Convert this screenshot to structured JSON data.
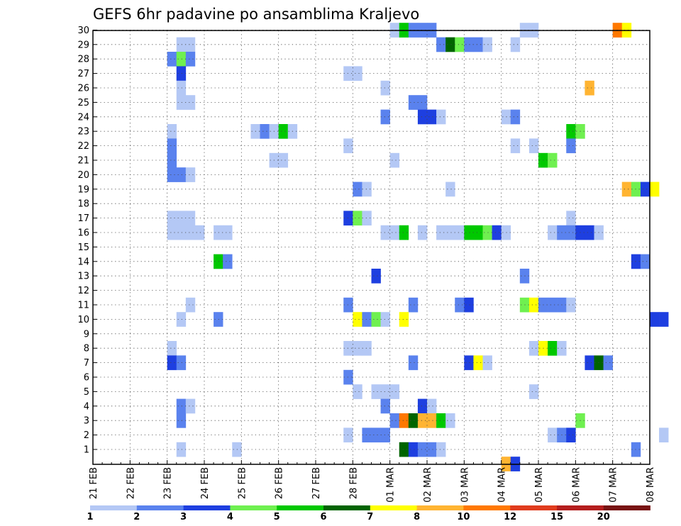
{
  "chart_data": {
    "type": "heatmap",
    "title": "GEFS 6hr padavine po ansamblima Kraljevo",
    "y_ticks": [
      "1",
      "2",
      "3",
      "4",
      "5",
      "6",
      "7",
      "8",
      "9",
      "10",
      "11",
      "12",
      "13",
      "14",
      "15",
      "16",
      "17",
      "18",
      "19",
      "20",
      "21",
      "22",
      "23",
      "24",
      "25",
      "26",
      "27",
      "28",
      "29",
      "30"
    ],
    "x_ticks": [
      "21 FEB",
      "22 FEB",
      "23 FEB",
      "24 FEB",
      "25 FEB",
      "26 FEB",
      "27 FEB",
      "28 FEB",
      "01 MAR",
      "02 MAR",
      "03 MAR",
      "04 MAR",
      "05 MAR",
      "06 MAR",
      "07 MAR",
      "08 MAR"
    ],
    "x_range": [
      "21 FEB",
      "08 MAR"
    ],
    "time_step_hours": 6,
    "grid": true,
    "legend": {
      "position": "bottom",
      "ticks": [
        "1",
        "2",
        "3",
        "4",
        "5",
        "6",
        "7",
        "8",
        "10",
        "12",
        "15",
        "20"
      ],
      "colors": [
        "#b4c8f5",
        "#5a82ee",
        "#1e3fe0",
        "#6ff050",
        "#00c800",
        "#006400",
        "#ffff00",
        "#ffb432",
        "#ff7800",
        "#e03c1e",
        "#b41e1e",
        "#781414"
      ]
    },
    "cells": [
      {
        "member": 30,
        "steps": [
          {
            "t": 32,
            "c": 0
          },
          {
            "t": 33,
            "c": 4
          },
          {
            "t": 34,
            "c": 1
          },
          {
            "t": 35,
            "c": 1
          },
          {
            "t": 36,
            "c": 1
          },
          {
            "t": 46,
            "c": 0
          },
          {
            "t": 47,
            "c": 0
          },
          {
            "t": 56,
            "c": 8
          },
          {
            "t": 57,
            "c": 6
          }
        ]
      },
      {
        "member": 29,
        "steps": [
          {
            "t": 9,
            "c": 0
          },
          {
            "t": 10,
            "c": 0
          },
          {
            "t": 37,
            "c": 1
          },
          {
            "t": 38,
            "c": 5
          },
          {
            "t": 39,
            "c": 3
          },
          {
            "t": 40,
            "c": 1
          },
          {
            "t": 41,
            "c": 1
          },
          {
            "t": 42,
            "c": 0
          },
          {
            "t": 45,
            "c": 0
          }
        ]
      },
      {
        "member": 28,
        "steps": [
          {
            "t": 8,
            "c": 1
          },
          {
            "t": 9,
            "c": 3
          },
          {
            "t": 10,
            "c": 1
          }
        ]
      },
      {
        "member": 27,
        "steps": [
          {
            "t": 9,
            "c": 2
          },
          {
            "t": 27,
            "c": 0
          },
          {
            "t": 28,
            "c": 0
          }
        ]
      },
      {
        "member": 26,
        "steps": [
          {
            "t": 9,
            "c": 0
          },
          {
            "t": 31,
            "c": 0
          },
          {
            "t": 53,
            "c": 7
          }
        ]
      },
      {
        "member": 25,
        "steps": [
          {
            "t": 9,
            "c": 0
          },
          {
            "t": 10,
            "c": 0
          },
          {
            "t": 34,
            "c": 1
          },
          {
            "t": 35,
            "c": 1
          }
        ]
      },
      {
        "member": 24,
        "steps": [
          {
            "t": 31,
            "c": 1
          },
          {
            "t": 35,
            "c": 2
          },
          {
            "t": 36,
            "c": 2
          },
          {
            "t": 37,
            "c": 0
          },
          {
            "t": 44,
            "c": 0
          },
          {
            "t": 45,
            "c": 1
          }
        ]
      },
      {
        "member": 23,
        "steps": [
          {
            "t": 8,
            "c": 0
          },
          {
            "t": 17,
            "c": 0
          },
          {
            "t": 18,
            "c": 1
          },
          {
            "t": 19,
            "c": 0
          },
          {
            "t": 20,
            "c": 4
          },
          {
            "t": 21,
            "c": 0
          },
          {
            "t": 51,
            "c": 4
          },
          {
            "t": 52,
            "c": 3
          }
        ]
      },
      {
        "member": 22,
        "steps": [
          {
            "t": 8,
            "c": 1
          },
          {
            "t": 27,
            "c": 0
          },
          {
            "t": 45,
            "c": 0
          },
          {
            "t": 47,
            "c": 0
          },
          {
            "t": 51,
            "c": 1
          }
        ]
      },
      {
        "member": 21,
        "steps": [
          {
            "t": 8,
            "c": 1
          },
          {
            "t": 19,
            "c": 0
          },
          {
            "t": 20,
            "c": 0
          },
          {
            "t": 32,
            "c": 0
          },
          {
            "t": 48,
            "c": 4
          },
          {
            "t": 49,
            "c": 3
          }
        ]
      },
      {
        "member": 20,
        "steps": [
          {
            "t": 8,
            "c": 1
          },
          {
            "t": 9,
            "c": 1
          },
          {
            "t": 10,
            "c": 0
          }
        ]
      },
      {
        "member": 19,
        "steps": [
          {
            "t": 28,
            "c": 1
          },
          {
            "t": 29,
            "c": 0
          },
          {
            "t": 38,
            "c": 0
          },
          {
            "t": 57,
            "c": 7
          },
          {
            "t": 58,
            "c": 3
          },
          {
            "t": 59,
            "c": 2
          },
          {
            "t": 60,
            "c": 6
          }
        ]
      },
      {
        "member": 17,
        "steps": [
          {
            "t": 8,
            "c": 0
          },
          {
            "t": 9,
            "c": 0
          },
          {
            "t": 10,
            "c": 0
          },
          {
            "t": 27,
            "c": 2
          },
          {
            "t": 28,
            "c": 3
          },
          {
            "t": 29,
            "c": 0
          },
          {
            "t": 51,
            "c": 0
          }
        ]
      },
      {
        "member": 16,
        "steps": [
          {
            "t": 8,
            "c": 0
          },
          {
            "t": 9,
            "c": 0
          },
          {
            "t": 10,
            "c": 0
          },
          {
            "t": 11,
            "c": 0
          },
          {
            "t": 13,
            "c": 0
          },
          {
            "t": 14,
            "c": 0
          },
          {
            "t": 31,
            "c": 0
          },
          {
            "t": 32,
            "c": 0
          },
          {
            "t": 33,
            "c": 4
          },
          {
            "t": 35,
            "c": 0
          },
          {
            "t": 37,
            "c": 0
          },
          {
            "t": 38,
            "c": 0
          },
          {
            "t": 39,
            "c": 0
          },
          {
            "t": 40,
            "c": 4
          },
          {
            "t": 41,
            "c": 4
          },
          {
            "t": 42,
            "c": 3
          },
          {
            "t": 43,
            "c": 2
          },
          {
            "t": 44,
            "c": 0
          },
          {
            "t": 49,
            "c": 0
          },
          {
            "t": 50,
            "c": 1
          },
          {
            "t": 51,
            "c": 1
          },
          {
            "t": 52,
            "c": 2
          },
          {
            "t": 53,
            "c": 2
          },
          {
            "t": 54,
            "c": 0
          }
        ]
      },
      {
        "member": 14,
        "steps": [
          {
            "t": 13,
            "c": 4
          },
          {
            "t": 14,
            "c": 1
          },
          {
            "t": 58,
            "c": 2
          },
          {
            "t": 59,
            "c": 1
          }
        ]
      },
      {
        "member": 13,
        "steps": [
          {
            "t": 30,
            "c": 2
          },
          {
            "t": 46,
            "c": 1
          }
        ]
      },
      {
        "member": 11,
        "steps": [
          {
            "t": 10,
            "c": 0
          },
          {
            "t": 27,
            "c": 1
          },
          {
            "t": 34,
            "c": 1
          },
          {
            "t": 39,
            "c": 1
          },
          {
            "t": 40,
            "c": 2
          },
          {
            "t": 46,
            "c": 3
          },
          {
            "t": 47,
            "c": 6
          },
          {
            "t": 48,
            "c": 1
          },
          {
            "t": 49,
            "c": 1
          },
          {
            "t": 50,
            "c": 1
          },
          {
            "t": 51,
            "c": 0
          }
        ]
      },
      {
        "member": 10,
        "steps": [
          {
            "t": 9,
            "c": 0
          },
          {
            "t": 13,
            "c": 1
          },
          {
            "t": 28,
            "c": 6
          },
          {
            "t": 29,
            "c": 1
          },
          {
            "t": 30,
            "c": 3
          },
          {
            "t": 31,
            "c": 0
          },
          {
            "t": 33,
            "c": 6
          },
          {
            "t": 60,
            "c": 2
          },
          {
            "t": 61,
            "c": 2
          }
        ]
      },
      {
        "member": 8,
        "steps": [
          {
            "t": 8,
            "c": 0
          },
          {
            "t": 27,
            "c": 0
          },
          {
            "t": 28,
            "c": 0
          },
          {
            "t": 29,
            "c": 0
          },
          {
            "t": 47,
            "c": 0
          },
          {
            "t": 48,
            "c": 6
          },
          {
            "t": 49,
            "c": 4
          },
          {
            "t": 50,
            "c": 0
          }
        ]
      },
      {
        "member": 7,
        "steps": [
          {
            "t": 8,
            "c": 2
          },
          {
            "t": 9,
            "c": 1
          },
          {
            "t": 34,
            "c": 1
          },
          {
            "t": 40,
            "c": 2
          },
          {
            "t": 41,
            "c": 6
          },
          {
            "t": 42,
            "c": 0
          },
          {
            "t": 53,
            "c": 2
          },
          {
            "t": 54,
            "c": 5
          },
          {
            "t": 55,
            "c": 1
          }
        ]
      },
      {
        "member": 6,
        "steps": [
          {
            "t": 27,
            "c": 1
          }
        ]
      },
      {
        "member": 5,
        "steps": [
          {
            "t": 28,
            "c": 0
          },
          {
            "t": 30,
            "c": 0
          },
          {
            "t": 31,
            "c": 0
          },
          {
            "t": 32,
            "c": 0
          },
          {
            "t": 47,
            "c": 0
          }
        ]
      },
      {
        "member": 4,
        "steps": [
          {
            "t": 9,
            "c": 1
          },
          {
            "t": 10,
            "c": 0
          },
          {
            "t": 31,
            "c": 1
          },
          {
            "t": 35,
            "c": 2
          },
          {
            "t": 36,
            "c": 0
          }
        ]
      },
      {
        "member": 3,
        "steps": [
          {
            "t": 9,
            "c": 1
          },
          {
            "t": 32,
            "c": 1
          },
          {
            "t": 33,
            "c": 8
          },
          {
            "t": 34,
            "c": 5
          },
          {
            "t": 35,
            "c": 7
          },
          {
            "t": 36,
            "c": 7
          },
          {
            "t": 37,
            "c": 4
          },
          {
            "t": 38,
            "c": 0
          },
          {
            "t": 52,
            "c": 3
          }
        ]
      },
      {
        "member": 2,
        "steps": [
          {
            "t": 27,
            "c": 0
          },
          {
            "t": 29,
            "c": 1
          },
          {
            "t": 30,
            "c": 1
          },
          {
            "t": 31,
            "c": 1
          },
          {
            "t": 49,
            "c": 0
          },
          {
            "t": 50,
            "c": 1
          },
          {
            "t": 51,
            "c": 2
          },
          {
            "t": 61,
            "c": 0
          }
        ]
      },
      {
        "member": 1,
        "steps": [
          {
            "t": 9,
            "c": 0
          },
          {
            "t": 15,
            "c": 0
          },
          {
            "t": 33,
            "c": 5
          },
          {
            "t": 34,
            "c": 2
          },
          {
            "t": 35,
            "c": 1
          },
          {
            "t": 36,
            "c": 1
          },
          {
            "t": 37,
            "c": 0
          },
          {
            "t": 58,
            "c": 1
          }
        ]
      },
      {
        "member": 0,
        "steps": [
          {
            "t": 44,
            "c": 7
          },
          {
            "t": 45,
            "c": 2
          }
        ]
      }
    ]
  }
}
